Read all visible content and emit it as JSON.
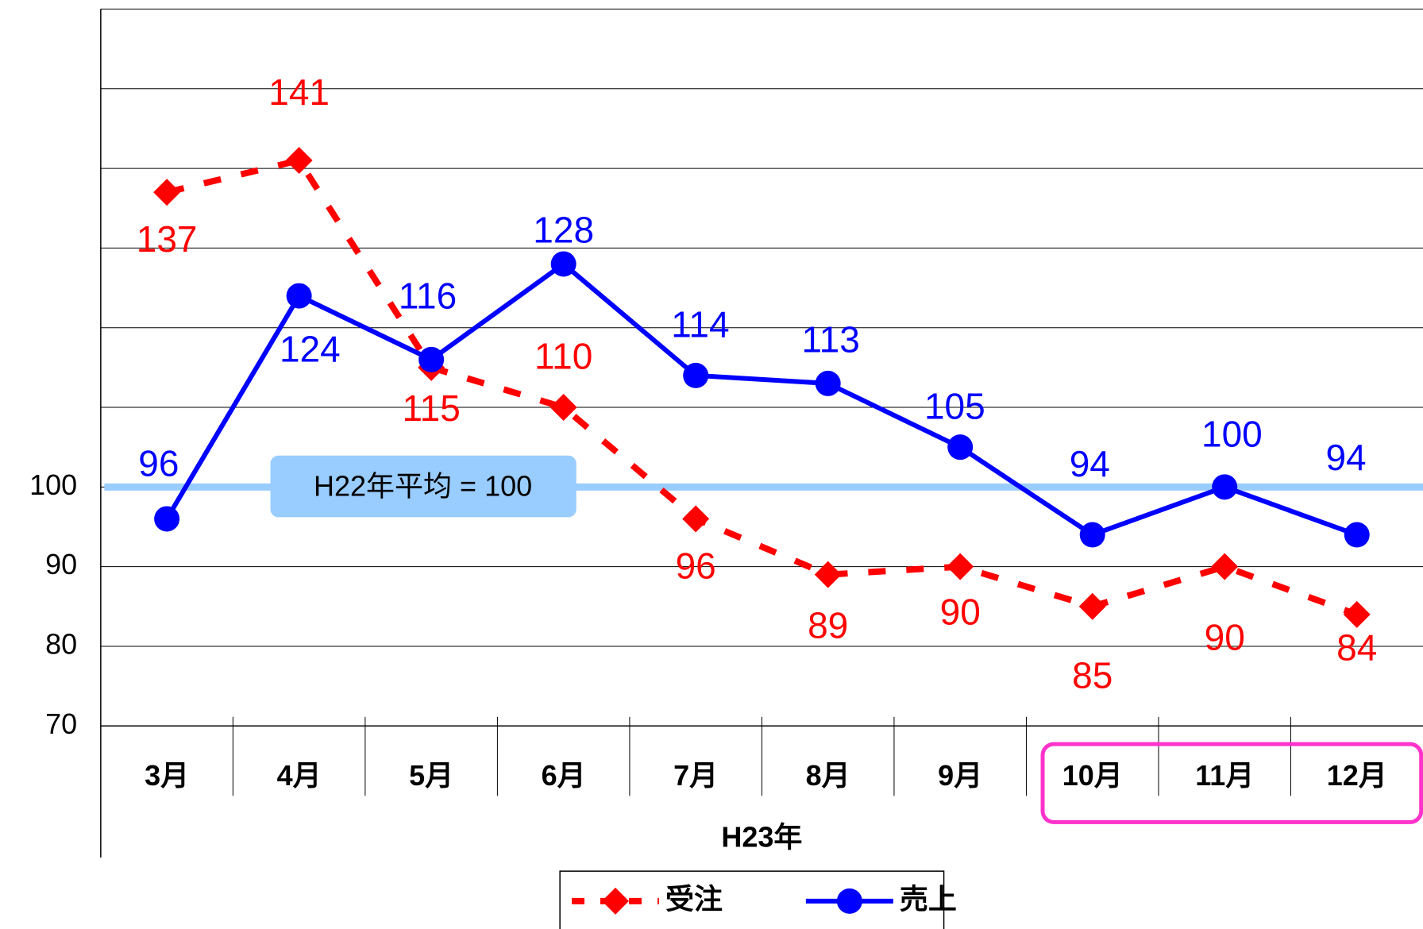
{
  "chart_data": {
    "type": "line",
    "categories": [
      "3月",
      "4月",
      "5月",
      "6月",
      "7月",
      "8月",
      "9月",
      "10月",
      "11月",
      "12月"
    ],
    "x_group_label": "H23年",
    "series": [
      {
        "name": "受注",
        "color": "#ff0000",
        "style": "dashed",
        "marker": "diamond",
        "values": [
          137,
          141,
          115,
          110,
          96,
          89,
          90,
          85,
          90,
          84
        ]
      },
      {
        "name": "売上",
        "color": "#0000ff",
        "style": "solid",
        "marker": "circle",
        "values": [
          96,
          124,
          116,
          128,
          114,
          113,
          105,
          94,
          100,
          94
        ]
      }
    ],
    "ylim": [
      70,
      160
    ],
    "yticks": [
      70,
      80,
      90,
      100
    ],
    "unlabeled_gridlines": [
      110,
      120,
      130,
      140,
      150
    ],
    "grid": true,
    "reference_line": {
      "value": 100,
      "label": "H22年平均 = 100",
      "color": "#99ccff"
    },
    "highlight_range": [
      7,
      9
    ],
    "highlight_color": "#ff33cc",
    "legend": "bottom"
  }
}
